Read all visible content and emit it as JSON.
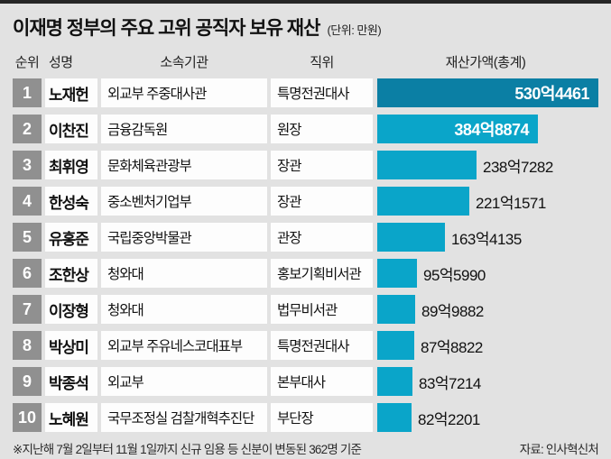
{
  "title": "이재명 정부의 주요 고위 공직자 보유 재산",
  "unit_label": "(단위: 만원)",
  "columns": {
    "rank": "순위",
    "name": "성명",
    "org": "소속기관",
    "position": "직위",
    "value": "재산가액(총계)"
  },
  "footnote": "※지난해 7월 2일부터 11월 1일까지 신규 임용 등 신분이 변동된 362명 기준",
  "source": "자료: 인사혁신처",
  "colors": {
    "bar_top": "#0b7fa4",
    "bar_default": "#0aa5c9",
    "rank_badge_bg": "#909090",
    "page_bg": "#e2e2e2",
    "cell_bg": "#fdfdfd",
    "top_rule": "#262626"
  },
  "chart_data": {
    "type": "bar",
    "orientation": "horizontal",
    "title": "이재명 정부의 주요 고위 공직자 보유 재산",
    "unit": "만원",
    "value_axis_label": "재산가액(총계)",
    "xlim": [
      0,
      5304461
    ],
    "legend": "none",
    "grid": "off",
    "rows": [
      {
        "rank": "1",
        "name": "노재헌",
        "org": "외교부 주중대사관",
        "position": "특명전권대사",
        "value": 5304461,
        "value_label": "530억4461",
        "label_inside": true
      },
      {
        "rank": "2",
        "name": "이찬진",
        "org": "금융감독원",
        "position": "원장",
        "value": 3848874,
        "value_label": "384억8874",
        "label_inside": true
      },
      {
        "rank": "3",
        "name": "최휘영",
        "org": "문화체육관광부",
        "position": "장관",
        "value": 2387282,
        "value_label": "238억7282",
        "label_inside": false
      },
      {
        "rank": "4",
        "name": "한성숙",
        "org": "중소벤처기업부",
        "position": "장관",
        "value": 2211571,
        "value_label": "221억1571",
        "label_inside": false
      },
      {
        "rank": "5",
        "name": "유홍준",
        "org": "국립중앙박물관",
        "position": "관장",
        "value": 1634135,
        "value_label": "163억4135",
        "label_inside": false
      },
      {
        "rank": "6",
        "name": "조한상",
        "org": "청와대",
        "position": "홍보기획비서관",
        "value": 955990,
        "value_label": "95억5990",
        "label_inside": false
      },
      {
        "rank": "7",
        "name": "이장형",
        "org": "청와대",
        "position": "법무비서관",
        "value": 899882,
        "value_label": "89억9882",
        "label_inside": false
      },
      {
        "rank": "8",
        "name": "박상미",
        "org": "외교부 주유네스코대표부",
        "position": "특명전권대사",
        "value": 878822,
        "value_label": "87억8822",
        "label_inside": false
      },
      {
        "rank": "9",
        "name": "박종석",
        "org": "외교부",
        "position": "본부대사",
        "value": 837214,
        "value_label": "83억7214",
        "label_inside": false
      },
      {
        "rank": "10",
        "name": "노혜원",
        "org": "국무조정실 검찰개혁추진단",
        "position": "부단장",
        "value": 822201,
        "value_label": "82억2201",
        "label_inside": false
      }
    ]
  }
}
